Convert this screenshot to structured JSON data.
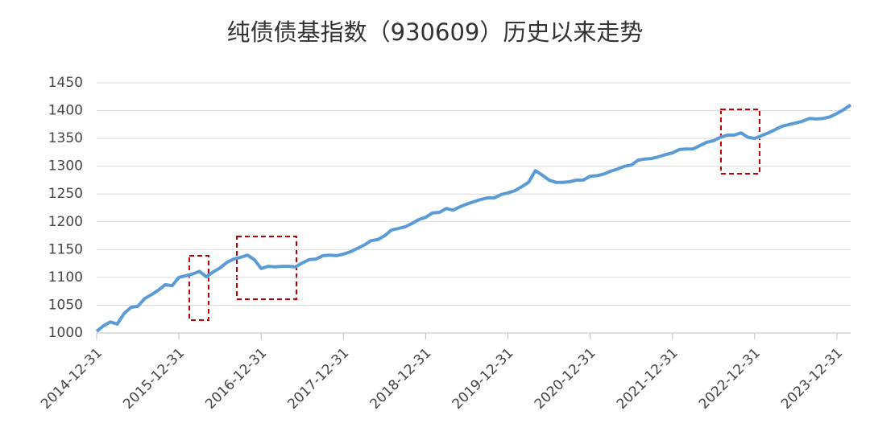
{
  "chart_data": {
    "type": "line",
    "title": "纯债债基指数（930609）历史以来走势",
    "categories": [
      "2014-12-31",
      null,
      null,
      null,
      null,
      null,
      null,
      null,
      null,
      null,
      null,
      null,
      "2015-12-31",
      null,
      null,
      null,
      null,
      null,
      null,
      null,
      null,
      null,
      null,
      null,
      "2016-12-31",
      null,
      null,
      null,
      null,
      null,
      null,
      null,
      null,
      null,
      null,
      null,
      "2017-12-31",
      null,
      null,
      null,
      null,
      null,
      null,
      null,
      null,
      null,
      null,
      null,
      "2018-12-31",
      null,
      null,
      null,
      null,
      null,
      null,
      null,
      null,
      null,
      null,
      null,
      "2019-12-31",
      null,
      null,
      null,
      null,
      null,
      null,
      null,
      null,
      null,
      null,
      null,
      "2020-12-31",
      null,
      null,
      null,
      null,
      null,
      null,
      null,
      null,
      null,
      null,
      null,
      "2021-12-31",
      null,
      null,
      null,
      null,
      null,
      null,
      null,
      null,
      null,
      null,
      null,
      "2022-12-31",
      null,
      null,
      null,
      null,
      null,
      null,
      null,
      null,
      null,
      null,
      null,
      "2023-12-31",
      null,
      null
    ],
    "values": [
      1003,
      1013,
      1020,
      1016,
      1035,
      1046,
      1048,
      1062,
      1069,
      1077,
      1087,
      1085,
      1100,
      1103,
      1106,
      1111,
      1101,
      1110,
      1117,
      1127,
      1133,
      1136,
      1140,
      1132,
      1116,
      1120,
      1119,
      1120,
      1120,
      1119,
      1126,
      1132,
      1133,
      1139,
      1140,
      1139,
      1142,
      1146,
      1152,
      1158,
      1166,
      1168,
      1175,
      1185,
      1188,
      1191,
      1197,
      1204,
      1208,
      1216,
      1217,
      1224,
      1221,
      1227,
      1232,
      1236,
      1240,
      1243,
      1243,
      1249,
      1252,
      1256,
      1263,
      1271,
      1292,
      1284,
      1275,
      1271,
      1271,
      1272,
      1275,
      1275,
      1282,
      1283,
      1286,
      1291,
      1295,
      1300,
      1302,
      1311,
      1313,
      1314,
      1317,
      1321,
      1324,
      1330,
      1331,
      1331,
      1337,
      1343,
      1346,
      1352,
      1356,
      1356,
      1360,
      1352,
      1350,
      1355,
      1360,
      1366,
      1372,
      1375,
      1378,
      1381,
      1386,
      1385,
      1386,
      1389,
      1395,
      1402,
      1410
    ],
    "color": "#5b9bd5",
    "ylim": [
      1000,
      1450
    ],
    "yticks": [
      1000,
      1050,
      1100,
      1150,
      1200,
      1250,
      1300,
      1350,
      1400,
      1450
    ],
    "grid": true
  }
}
